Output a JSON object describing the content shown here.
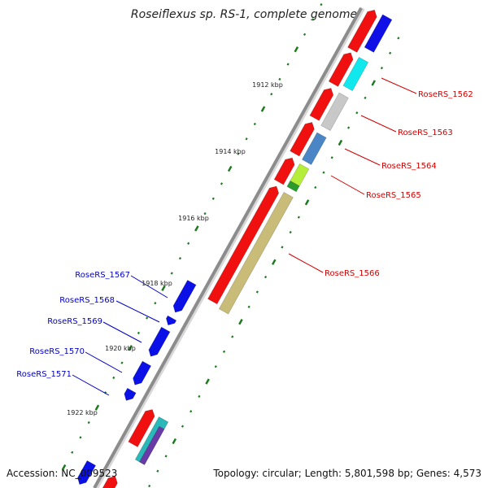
{
  "title": "Roseiflexus sp. RS-1, complete genome",
  "footer": {
    "accession": "Accession: NC_009523",
    "summary": "Topology: circular; Length: 5,801,598 bp; Genes: 4,573"
  },
  "colors": {
    "backbone": "#8c8c8c",
    "tick": "#1e7a1e",
    "forward_label": "#d40000",
    "reverse_label": "#0000c8"
  },
  "kbp_labels": [
    "1912 kbp",
    "1914 kbp",
    "1916 kbp",
    "1918 kbp",
    "1920 kbp",
    "1922 kbp"
  ],
  "forward_genes": [
    "RoseRS_1562",
    "RoseRS_1563",
    "RoseRS_1564",
    "RoseRS_1565",
    "RoseRS_1566"
  ],
  "reverse_genes": [
    "RoseRS_1567",
    "RoseRS_1568",
    "RoseRS_1569",
    "RoseRS_1570",
    "RoseRS_1571"
  ]
}
